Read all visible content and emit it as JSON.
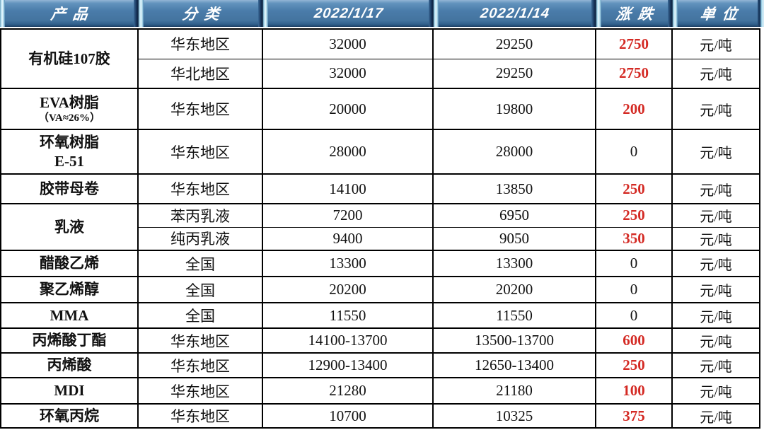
{
  "colors": {
    "header_blue": "#4a7caa",
    "header_bevel_highlight": "#e7f8fe",
    "header_bevel_shadow": "#0d2340",
    "header_text": "#ffffff",
    "body_text": "#111111",
    "border": "#000000",
    "change_up_red": "#d42a24"
  },
  "header": {
    "columns": [
      "产品",
      "分类",
      "2022/1/17",
      "2022/1/14",
      "涨跌",
      "单位"
    ]
  },
  "products": [
    {
      "name": "有机硅107胶",
      "name2": "",
      "name2_small": false,
      "rows": [
        {
          "category": "华东地区",
          "price_2022_1_17": "32000",
          "price_2022_1_14": "29250",
          "change": "2750",
          "change_is_red": true,
          "unit": "元/吨"
        },
        {
          "category": "华北地区",
          "price_2022_1_17": "32000",
          "price_2022_1_14": "29250",
          "change": "2750",
          "change_is_red": true,
          "unit": "元/吨"
        }
      ]
    },
    {
      "name": "EVA树脂",
      "name2": "（VA≈26%）",
      "name2_small": true,
      "rows": [
        {
          "category": "华东地区",
          "price_2022_1_17": "20000",
          "price_2022_1_14": "19800",
          "change": "200",
          "change_is_red": true,
          "unit": "元/吨"
        }
      ]
    },
    {
      "name": "环氧树脂",
      "name2": "E-51",
      "name2_small": false,
      "rows": [
        {
          "category": "华东地区",
          "price_2022_1_17": "28000",
          "price_2022_1_14": "28000",
          "change": "0",
          "change_is_red": false,
          "unit": "元/吨"
        }
      ]
    },
    {
      "name": "胶带母卷",
      "name2": "",
      "name2_small": false,
      "rows": [
        {
          "category": "华东地区",
          "price_2022_1_17": "14100",
          "price_2022_1_14": "13850",
          "change": "250",
          "change_is_red": true,
          "unit": "元/吨"
        }
      ]
    },
    {
      "name": "乳液",
      "name2": "",
      "name2_small": false,
      "rows": [
        {
          "category": "苯丙乳液",
          "price_2022_1_17": "7200",
          "price_2022_1_14": "6950",
          "change": "250",
          "change_is_red": true,
          "unit": "元/吨"
        },
        {
          "category": "纯丙乳液",
          "price_2022_1_17": "9400",
          "price_2022_1_14": "9050",
          "change": "350",
          "change_is_red": true,
          "unit": "元/吨"
        }
      ]
    },
    {
      "name": "醋酸乙烯",
      "name2": "",
      "name2_small": false,
      "rows": [
        {
          "category": "全国",
          "price_2022_1_17": "13300",
          "price_2022_1_14": "13300",
          "change": "0",
          "change_is_red": false,
          "unit": "元/吨"
        }
      ]
    },
    {
      "name": "聚乙烯醇",
      "name2": "",
      "name2_small": false,
      "rows": [
        {
          "category": "全国",
          "price_2022_1_17": "20200",
          "price_2022_1_14": "20200",
          "change": "0",
          "change_is_red": false,
          "unit": "元/吨"
        }
      ]
    },
    {
      "name": "MMA",
      "name2": "",
      "name2_small": false,
      "rows": [
        {
          "category": "全国",
          "price_2022_1_17": "11550",
          "price_2022_1_14": "11550",
          "change": "0",
          "change_is_red": false,
          "unit": "元/吨"
        }
      ]
    },
    {
      "name": "丙烯酸丁酯",
      "name2": "",
      "name2_small": false,
      "rows": [
        {
          "category": "华东地区",
          "price_2022_1_17": "14100-13700",
          "price_2022_1_14": "13500-13700",
          "change": "600",
          "change_is_red": true,
          "unit": "元/吨"
        }
      ]
    },
    {
      "name": "丙烯酸",
      "name2": "",
      "name2_small": false,
      "rows": [
        {
          "category": "华东地区",
          "price_2022_1_17": "12900-13400",
          "price_2022_1_14": "12650-13400",
          "change": "250",
          "change_is_red": true,
          "unit": "元/吨"
        }
      ]
    },
    {
      "name": "MDI",
      "name2": "",
      "name2_small": false,
      "rows": [
        {
          "category": "华东地区",
          "price_2022_1_17": "21280",
          "price_2022_1_14": "21180",
          "change": "100",
          "change_is_red": true,
          "unit": "元/吨"
        }
      ]
    },
    {
      "name": "环氧丙烷",
      "name2": "",
      "name2_small": false,
      "rows": [
        {
          "category": "华东地区",
          "price_2022_1_17": "10700",
          "price_2022_1_14": "10325",
          "change": "375",
          "change_is_red": true,
          "unit": "元/吨"
        }
      ]
    }
  ],
  "chart_data": {
    "type": "table",
    "columns": [
      "产品",
      "分类",
      "2022/1/17",
      "2022/1/14",
      "涨跌",
      "单位"
    ],
    "rows": [
      [
        "有机硅107胶",
        "华东地区",
        "32000",
        "29250",
        "2750",
        "元/吨"
      ],
      [
        "有机硅107胶",
        "华北地区",
        "32000",
        "29250",
        "2750",
        "元/吨"
      ],
      [
        "EVA树脂（VA≈26%）",
        "华东地区",
        "20000",
        "19800",
        "200",
        "元/吨"
      ],
      [
        "环氧树脂E-51",
        "华东地区",
        "28000",
        "28000",
        "0",
        "元/吨"
      ],
      [
        "胶带母卷",
        "华东地区",
        "14100",
        "13850",
        "250",
        "元/吨"
      ],
      [
        "乳液",
        "苯丙乳液",
        "7200",
        "6950",
        "250",
        "元/吨"
      ],
      [
        "乳液",
        "纯丙乳液",
        "9400",
        "9050",
        "350",
        "元/吨"
      ],
      [
        "醋酸乙烯",
        "全国",
        "13300",
        "13300",
        "0",
        "元/吨"
      ],
      [
        "聚乙烯醇",
        "全国",
        "20200",
        "20200",
        "0",
        "元/吨"
      ],
      [
        "MMA",
        "全国",
        "11550",
        "11550",
        "0",
        "元/吨"
      ],
      [
        "丙烯酸丁酯",
        "华东地区",
        "14100-13700",
        "13500-13700",
        "600",
        "元/吨"
      ],
      [
        "丙烯酸",
        "华东地区",
        "12900-13400",
        "12650-13400",
        "250",
        "元/吨"
      ],
      [
        "MDI",
        "华东地区",
        "21280",
        "21180",
        "100",
        "元/吨"
      ],
      [
        "环氧丙烷",
        "华东地区",
        "10700",
        "10325",
        "375",
        "元/吨"
      ]
    ]
  }
}
